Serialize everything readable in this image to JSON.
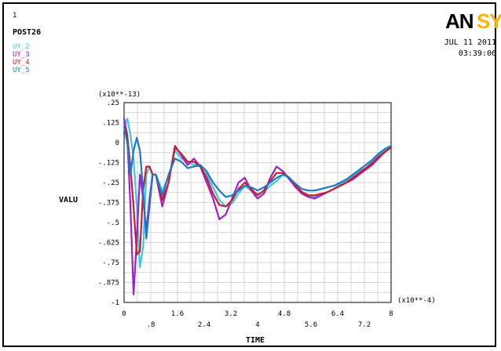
{
  "header": {
    "marker": "1",
    "post_label": "POST26",
    "brand": "ANSYS",
    "date": "JUL 11 2011",
    "time": "03:39:06"
  },
  "colors": {
    "UY_2": "#38c8e8",
    "UY_3": "#a020c8",
    "UY_4": "#c81e28",
    "UY_5": "#1e78c8",
    "brand_dark": "#000000",
    "brand_accent": "#f7b500"
  },
  "chart_data": {
    "type": "line",
    "title": "",
    "xlabel": "TIME",
    "ylabel": "VALU",
    "x_multiplier": "(x10**-4)",
    "y_multiplier": "(x10**-13)",
    "xlim": [
      0,
      8.4
    ],
    "ylim": [
      -1,
      0.25
    ],
    "grid": true,
    "legend": "top-left",
    "x_ticks_upper": [
      "0",
      "1.6",
      "3.2",
      "4.8",
      "6.4",
      "8"
    ],
    "x_ticks_lower": [
      ".8",
      "2.4",
      "4",
      "5.6",
      "7.2"
    ],
    "y_ticks": [
      ".25",
      ".125",
      "0",
      "-.125",
      "-.25",
      "-.375",
      "-.5",
      "-.625",
      "-.75",
      "-.875",
      "-1"
    ],
    "series": [
      {
        "name": "UY_2",
        "x": [
          0,
          0.1,
          0.2,
          0.3,
          0.4,
          0.5,
          0.6,
          0.7,
          0.8,
          0.9,
          1.0,
          1.2,
          1.4,
          1.6,
          1.8,
          2.0,
          2.2,
          2.4,
          2.6,
          2.8,
          3.0,
          3.2,
          3.4,
          3.6,
          3.8,
          4.0,
          4.2,
          4.4,
          4.6,
          4.8,
          5.0,
          5.2,
          5.4,
          5.6,
          5.8,
          6.0,
          6.2,
          6.4,
          6.6,
          6.8,
          7.0,
          7.2,
          7.4,
          7.6,
          7.8,
          8.0,
          8.2,
          8.4
        ],
        "y": [
          0.1,
          0.15,
          0.05,
          -0.1,
          -0.4,
          -0.78,
          -0.65,
          -0.2,
          -0.15,
          -0.2,
          -0.2,
          -0.3,
          -0.22,
          -0.05,
          -0.1,
          -0.12,
          -0.14,
          -0.15,
          -0.2,
          -0.28,
          -0.36,
          -0.4,
          -0.38,
          -0.32,
          -0.27,
          -0.3,
          -0.32,
          -0.31,
          -0.27,
          -0.24,
          -0.2,
          -0.22,
          -0.28,
          -0.31,
          -0.33,
          -0.34,
          -0.33,
          -0.31,
          -0.29,
          -0.26,
          -0.24,
          -0.21,
          -0.18,
          -0.16,
          -0.12,
          -0.08,
          -0.05,
          -0.02
        ]
      },
      {
        "name": "UY_3",
        "x": [
          0,
          0.1,
          0.2,
          0.3,
          0.4,
          0.5,
          0.6,
          0.7,
          0.8,
          0.9,
          1.0,
          1.2,
          1.4,
          1.6,
          1.8,
          2.0,
          2.2,
          2.4,
          2.6,
          2.8,
          3.0,
          3.2,
          3.4,
          3.6,
          3.8,
          4.0,
          4.2,
          4.4,
          4.6,
          4.8,
          5.0,
          5.2,
          5.4,
          5.6,
          5.8,
          6.0,
          6.2,
          6.4,
          6.6,
          6.8,
          7.0,
          7.2,
          7.4,
          7.6,
          7.8,
          8.0,
          8.2,
          8.4
        ],
        "y": [
          0.15,
          0.05,
          -0.4,
          -0.95,
          -0.6,
          -0.2,
          -0.35,
          -0.55,
          -0.35,
          -0.2,
          -0.2,
          -0.4,
          -0.25,
          -0.02,
          -0.08,
          -0.14,
          -0.1,
          -0.15,
          -0.25,
          -0.35,
          -0.48,
          -0.45,
          -0.35,
          -0.25,
          -0.22,
          -0.3,
          -0.35,
          -0.32,
          -0.22,
          -0.15,
          -0.18,
          -0.23,
          -0.28,
          -0.32,
          -0.34,
          -0.35,
          -0.33,
          -0.31,
          -0.29,
          -0.27,
          -0.25,
          -0.23,
          -0.2,
          -0.17,
          -0.14,
          -0.1,
          -0.06,
          -0.03
        ]
      },
      {
        "name": "UY_4",
        "x": [
          0,
          0.1,
          0.2,
          0.3,
          0.4,
          0.5,
          0.6,
          0.7,
          0.8,
          0.9,
          1.0,
          1.2,
          1.4,
          1.6,
          1.8,
          2.0,
          2.2,
          2.4,
          2.6,
          2.8,
          3.0,
          3.2,
          3.4,
          3.6,
          3.8,
          4.0,
          4.2,
          4.4,
          4.6,
          4.8,
          5.0,
          5.2,
          5.4,
          5.6,
          5.8,
          6.0,
          6.2,
          6.4,
          6.6,
          6.8,
          7.0,
          7.2,
          7.4,
          7.6,
          7.8,
          8.0,
          8.2,
          8.4
        ],
        "y": [
          0.1,
          0.05,
          -0.15,
          -0.4,
          -0.7,
          -0.68,
          -0.3,
          -0.15,
          -0.15,
          -0.2,
          -0.2,
          -0.36,
          -0.25,
          -0.03,
          -0.07,
          -0.12,
          -0.12,
          -0.15,
          -0.22,
          -0.32,
          -0.39,
          -0.4,
          -0.36,
          -0.29,
          -0.25,
          -0.29,
          -0.33,
          -0.3,
          -0.24,
          -0.19,
          -0.19,
          -0.22,
          -0.27,
          -0.31,
          -0.33,
          -0.33,
          -0.32,
          -0.31,
          -0.29,
          -0.27,
          -0.25,
          -0.22,
          -0.19,
          -0.16,
          -0.13,
          -0.09,
          -0.06,
          -0.03
        ]
      },
      {
        "name": "UY_5",
        "x": [
          0,
          0.1,
          0.2,
          0.3,
          0.4,
          0.5,
          0.6,
          0.7,
          0.8,
          0.9,
          1.0,
          1.2,
          1.4,
          1.6,
          1.8,
          2.0,
          2.2,
          2.4,
          2.6,
          2.8,
          3.0,
          3.2,
          3.4,
          3.6,
          3.8,
          4.0,
          4.2,
          4.4,
          4.6,
          4.8,
          5.0,
          5.2,
          5.4,
          5.6,
          5.8,
          6.0,
          6.2,
          6.4,
          6.6,
          6.8,
          7.0,
          7.2,
          7.4,
          7.6,
          7.8,
          8.0,
          8.2,
          8.4
        ],
        "y": [
          0.1,
          0.0,
          -0.2,
          -0.05,
          0.03,
          -0.05,
          -0.3,
          -0.6,
          -0.4,
          -0.2,
          -0.2,
          -0.33,
          -0.2,
          -0.1,
          -0.12,
          -0.16,
          -0.15,
          -0.14,
          -0.18,
          -0.25,
          -0.3,
          -0.34,
          -0.33,
          -0.3,
          -0.27,
          -0.28,
          -0.3,
          -0.28,
          -0.25,
          -0.22,
          -0.2,
          -0.22,
          -0.26,
          -0.29,
          -0.3,
          -0.3,
          -0.29,
          -0.28,
          -0.27,
          -0.25,
          -0.23,
          -0.2,
          -0.17,
          -0.14,
          -0.11,
          -0.07,
          -0.04,
          -0.02
        ]
      }
    ]
  }
}
